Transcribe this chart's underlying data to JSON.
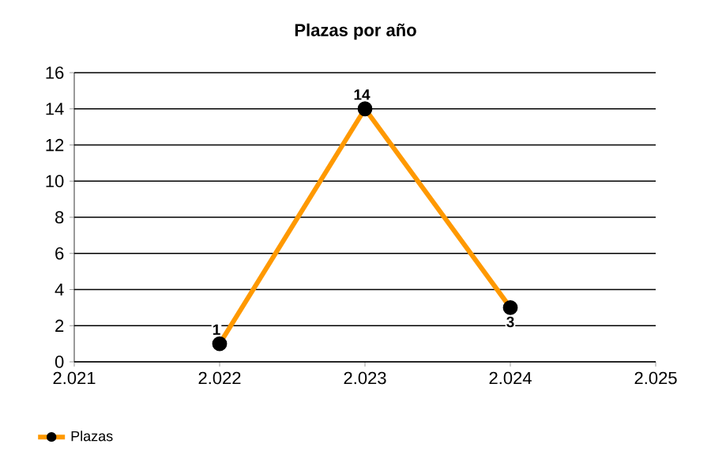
{
  "chart_data": {
    "type": "line",
    "title": "Plazas por año",
    "x": [
      2022,
      2023,
      2024
    ],
    "series": [
      {
        "name": "Plazas",
        "color": "#ff9900",
        "values": [
          1,
          14,
          3
        ]
      }
    ],
    "xlim": [
      2021,
      2025
    ],
    "xticks": [
      {
        "value": 2021,
        "label": "2.021"
      },
      {
        "value": 2022,
        "label": "2.022"
      },
      {
        "value": 2023,
        "label": "2.023"
      },
      {
        "value": 2024,
        "label": "2.024"
      },
      {
        "value": 2025,
        "label": "2.025"
      }
    ],
    "ylim": [
      0,
      16
    ],
    "yticks": [
      0,
      2,
      4,
      6,
      8,
      10,
      12,
      14,
      16
    ],
    "grid": "y",
    "legend": "bottom left",
    "marker": "circle",
    "data_labels": true
  }
}
